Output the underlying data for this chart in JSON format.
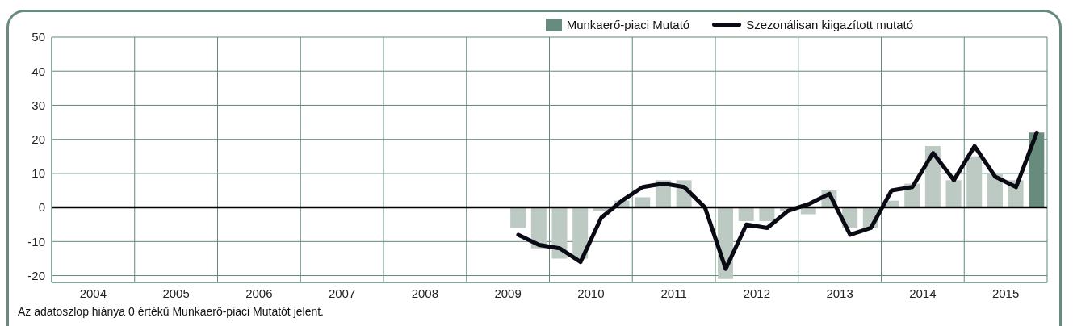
{
  "chart_data": {
    "type": "bar",
    "legend": "top right",
    "grid": true,
    "x": [
      2009.625,
      2009.875,
      2010.125,
      2010.375,
      2010.625,
      2010.875,
      2011.125,
      2011.375,
      2011.625,
      2011.875,
      2012.125,
      2012.375,
      2012.625,
      2012.875,
      2013.125,
      2013.375,
      2013.625,
      2013.875,
      2014.125,
      2014.375,
      2014.625,
      2014.875,
      2015.125,
      2015.375,
      2015.625,
      2015.875
    ],
    "xlim": [
      2004,
      2016
    ],
    "xticks": [
      {
        "value": 2004,
        "label": null
      },
      {
        "value": 2004.5,
        "label": "2004"
      },
      {
        "value": 2005,
        "label": null
      },
      {
        "value": 2005.5,
        "label": "2005"
      },
      {
        "value": 2006,
        "label": null
      },
      {
        "value": 2006.5,
        "label": "2006"
      },
      {
        "value": 2007,
        "label": null
      },
      {
        "value": 2007.5,
        "label": "2007"
      },
      {
        "value": 2008,
        "label": null
      },
      {
        "value": 2008.5,
        "label": "2008"
      },
      {
        "value": 2009,
        "label": null
      },
      {
        "value": 2009.5,
        "label": "2009"
      },
      {
        "value": 2010,
        "label": null
      },
      {
        "value": 2010.5,
        "label": "2010"
      },
      {
        "value": 2011,
        "label": null
      },
      {
        "value": 2011.5,
        "label": "2011"
      },
      {
        "value": 2012,
        "label": null
      },
      {
        "value": 2012.5,
        "label": "2012"
      },
      {
        "value": 2013,
        "label": null
      },
      {
        "value": 2013.5,
        "label": "2013"
      },
      {
        "value": 2014,
        "label": null
      },
      {
        "value": 2014.5,
        "label": "2014"
      },
      {
        "value": 2015,
        "label": null
      },
      {
        "value": 2015.5,
        "label": "2015"
      },
      {
        "value": 2016,
        "label": null
      }
    ],
    "ylim": [
      -22,
      50
    ],
    "yticks": [
      -20,
      -10,
      0,
      10,
      20,
      30,
      40,
      50
    ],
    "ref_lines": [
      {
        "axis": "y",
        "value": 0,
        "color": "#000000"
      }
    ],
    "series": [
      {
        "name": "Munkaerő-piaci Mutató",
        "color": "#678b7c",
        "colors": [
          "#bdcac4",
          "#bdcac4",
          "#bdcac4",
          "#bdcac4",
          "#bdcac4",
          "#bdcac4",
          "#bdcac4",
          "#bdcac4",
          "#bdcac4",
          "#bdcac4",
          "#bdcac4",
          "#bdcac4",
          "#bdcac4",
          "#bdcac4",
          "#bdcac4",
          "#bdcac4",
          "#bdcac4",
          "#bdcac4",
          "#bdcac4",
          "#bdcac4",
          "#bdcac4",
          "#bdcac4",
          "#bdcac4",
          "#bdcac4",
          "#bdcac4",
          "#678b7c"
        ],
        "values": [
          -6,
          -12,
          -15,
          -15,
          -1,
          2,
          3,
          8,
          8,
          0,
          -21,
          -4,
          -4,
          -1,
          -2,
          5,
          -6,
          -6,
          2,
          7,
          18,
          8,
          15,
          10,
          8,
          22
        ]
      },
      {
        "name": "Szezonálisan kiigazított mutató",
        "type": "line",
        "color": "#0a0a14",
        "values": [
          -8,
          -11,
          -12,
          -16,
          -3,
          2,
          6,
          7,
          6,
          0,
          -18,
          -5,
          -6,
          -1,
          1,
          4,
          -8,
          -6,
          5,
          6,
          16,
          8,
          18,
          9,
          6,
          22
        ]
      }
    ],
    "annotations": [
      "Az adatoszlop hiánya 0 értékű Munkaerő-piaci Mutatót jelent."
    ]
  }
}
